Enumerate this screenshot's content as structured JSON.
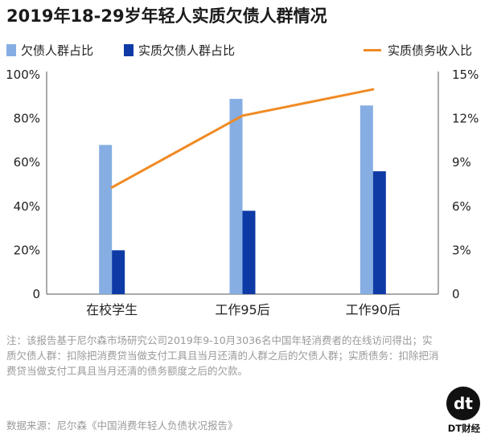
{
  "title": "2019年18-29岁年轻人实质欠债人群情况",
  "legend": {
    "series1": "欠债人群占比",
    "series2": "实质欠债人群占比",
    "series3": "实质债务收入比"
  },
  "colors": {
    "series1": "#86aee3",
    "series2": "#0e3aa6",
    "series3": "#f08a24",
    "axis": "#555555",
    "grid": "#dddddd"
  },
  "chart_data": {
    "type": "bar",
    "categories": [
      "在校学生",
      "工作95后",
      "工作90后"
    ],
    "series": [
      {
        "name": "欠债人群占比",
        "type": "bar",
        "axis": "left",
        "values": [
          68,
          89,
          86
        ]
      },
      {
        "name": "实质欠债人群占比",
        "type": "bar",
        "axis": "left",
        "values": [
          20,
          38,
          56
        ]
      },
      {
        "name": "实质债务收入比",
        "type": "line",
        "axis": "right",
        "values": [
          7.3,
          12.2,
          14.0
        ]
      }
    ],
    "y_left": {
      "ylim": [
        0,
        100
      ],
      "ticks": [
        "0",
        "20%",
        "40%",
        "60%",
        "80%",
        "100%"
      ]
    },
    "y_right": {
      "ylim": [
        0,
        15
      ],
      "ticks": [
        "0",
        "3%",
        "6%",
        "9%",
        "12%",
        "15%"
      ]
    },
    "grid": false,
    "legend_position": "top"
  },
  "note": "注：该报告基于尼尔森市场研究公司2019年9-10月3036名中国年轻消费者的在线访问得出；实质欠债人群：扣除把消费贷当做支付工具且当月还清的人群之后的欠债人群；实质债务：扣除把消费贷当做支付工具且当月还清的债务额度之后的欠款。",
  "source": "数据来源：尼尔森《中国消费年轻人负债状况报告》",
  "logo": {
    "mark": "dt",
    "brand": "DT财经"
  }
}
